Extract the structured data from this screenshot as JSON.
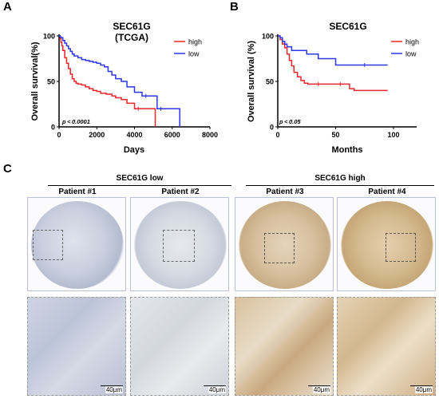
{
  "panels": {
    "a": "A",
    "b": "B",
    "c": "C"
  },
  "chart_data": [
    {
      "type": "line",
      "subtype": "kaplan-meier",
      "title": "SEC61G",
      "subtitle": "(TCGA)",
      "xlabel": "Days",
      "ylabel": "Overall survival(%)",
      "xlim": [
        0,
        8000
      ],
      "ylim": [
        0,
        100
      ],
      "xticks": [
        "0",
        "2000",
        "4000",
        "6000",
        "8000"
      ],
      "yticks": [
        "0",
        "50",
        "100"
      ],
      "annotation": "p < 0.0001",
      "legend_position": "top-right",
      "series": [
        {
          "name": "high",
          "color": "#e8252b",
          "x": [
            0,
            50,
            100,
            150,
            200,
            300,
            400,
            500,
            600,
            700,
            800,
            900,
            1000,
            1200,
            1400,
            1600,
            1800,
            2000,
            2200,
            2500,
            2800,
            3000,
            3300,
            3600,
            4000,
            4400,
            4800,
            5100
          ],
          "y": [
            100,
            97,
            93,
            89,
            84,
            76,
            70,
            64,
            58,
            53,
            50,
            48,
            47,
            46,
            44,
            42,
            40,
            39,
            37,
            36,
            34,
            32,
            30,
            26,
            20,
            20,
            20,
            0
          ]
        },
        {
          "name": "low",
          "color": "#2d36e8",
          "x": [
            0,
            50,
            100,
            200,
            300,
            400,
            500,
            600,
            700,
            800,
            1000,
            1200,
            1400,
            1600,
            1800,
            2000,
            2200,
            2400,
            2600,
            2800,
            3000,
            3300,
            3600,
            4000,
            4400,
            4800,
            5200,
            5600,
            6000,
            6400
          ],
          "y": [
            100,
            99,
            98,
            95,
            92,
            89,
            86,
            83,
            80,
            78,
            76,
            74,
            73,
            72,
            71,
            70,
            68,
            66,
            61,
            57,
            53,
            50,
            44,
            38,
            34,
            34,
            20,
            20,
            20,
            0
          ]
        }
      ]
    },
    {
      "type": "line",
      "subtype": "kaplan-meier",
      "title": "SEC61G",
      "xlabel": "Months",
      "ylabel": "Overall survival (%)",
      "xlim": [
        0,
        120
      ],
      "ylim": [
        0,
        100
      ],
      "xticks": [
        "0",
        "50",
        "100"
      ],
      "yticks": [
        "0",
        "50",
        "100"
      ],
      "annotation": "p < 0.05",
      "legend_position": "top-right",
      "series": [
        {
          "name": "high",
          "color": "#e8252b",
          "x": [
            0,
            2,
            4,
            6,
            8,
            10,
            12,
            14,
            17,
            20,
            23,
            26,
            30,
            40,
            50,
            58,
            62,
            66,
            95
          ],
          "y": [
            100,
            96,
            91,
            87,
            80,
            73,
            67,
            60,
            55,
            51,
            48,
            47,
            47,
            47,
            47,
            47,
            42,
            40,
            40
          ]
        },
        {
          "name": "low",
          "color": "#2d36e8",
          "x": [
            0,
            2,
            4,
            6,
            8,
            12,
            18,
            25,
            35,
            50,
            55,
            95
          ],
          "y": [
            100,
            98,
            94,
            91,
            88,
            84,
            84,
            80,
            75,
            68,
            68,
            68
          ]
        }
      ]
    }
  ],
  "ihc": {
    "group_low": "SEC61G low",
    "group_high": "SEC61G high",
    "patients": [
      "Patient #1",
      "Patient #2",
      "Patient #3",
      "Patient #4"
    ],
    "scale_label": "40μm"
  }
}
